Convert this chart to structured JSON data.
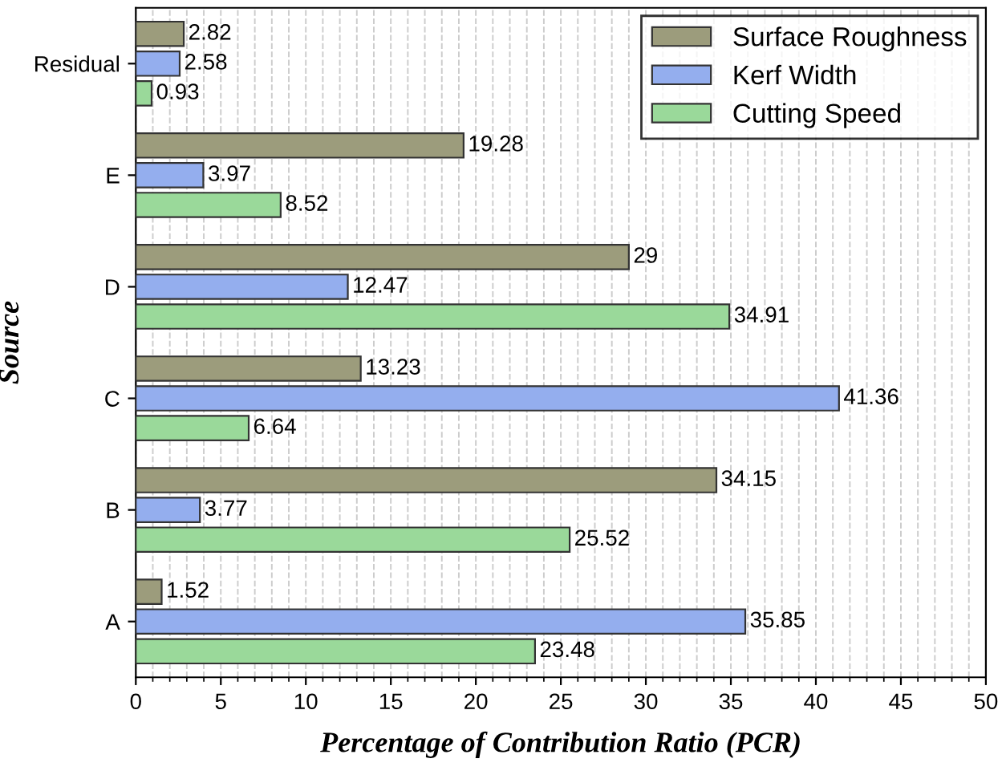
{
  "chart_data": {
    "type": "bar",
    "orientation": "horizontal",
    "xlabel": "Percentage of Contribution Ratio (PCR)",
    "ylabel": "Source",
    "categories": [
      "Residual",
      "E",
      "D",
      "C",
      "B",
      "A"
    ],
    "series": [
      {
        "name": "Surface Roughness",
        "color": "#9c9c7c",
        "values": [
          2.82,
          19.28,
          29,
          13.23,
          34.15,
          1.52
        ]
      },
      {
        "name": "Kerf Width",
        "color": "#94aeee",
        "values": [
          2.58,
          3.97,
          12.47,
          41.36,
          3.77,
          35.85
        ]
      },
      {
        "name": "Cutting Speed",
        "color": "#9ad99a",
        "values": [
          0.93,
          8.52,
          34.91,
          6.64,
          25.52,
          23.48
        ]
      }
    ],
    "xlim": [
      0,
      50
    ],
    "xticks": [
      0,
      5,
      10,
      15,
      20,
      25,
      30,
      35,
      40,
      45,
      50
    ],
    "grid": true,
    "legend": "top right",
    "data_labels": true
  }
}
